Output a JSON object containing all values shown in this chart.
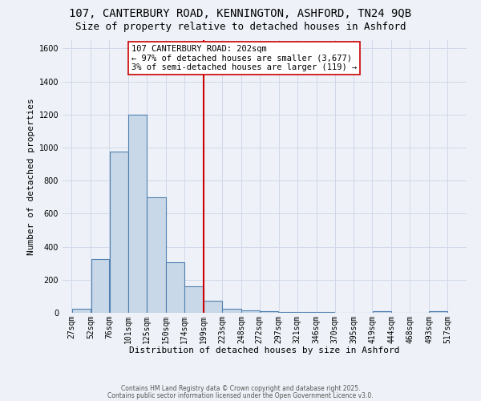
{
  "title_line1": "107, CANTERBURY ROAD, KENNINGTON, ASHFORD, TN24 9QB",
  "title_line2": "Size of property relative to detached houses in Ashford",
  "xlabel": "Distribution of detached houses by size in Ashford",
  "ylabel": "Number of detached properties",
  "bin_edges": [
    27,
    52,
    76,
    101,
    125,
    150,
    174,
    199,
    223,
    248,
    272,
    297,
    321,
    346,
    370,
    395,
    419,
    444,
    468,
    493,
    517
  ],
  "bar_heights": [
    25,
    325,
    975,
    1200,
    700,
    305,
    160,
    75,
    25,
    15,
    10,
    5,
    5,
    5,
    0,
    0,
    10,
    0,
    0,
    10
  ],
  "bar_color": "#c8d8e8",
  "bar_edgecolor": "#5080b0",
  "vline_x": 199,
  "vline_color": "#cc0000",
  "annotation_text": "107 CANTERBURY ROAD: 202sqm\n← 97% of detached houses are smaller (3,677)\n3% of semi-detached houses are larger (119) →",
  "annotation_box_edgecolor": "#cc0000",
  "annotation_box_facecolor": "#ffffff",
  "ylim": [
    0,
    1650
  ],
  "yticks": [
    0,
    200,
    400,
    600,
    800,
    1000,
    1200,
    1400,
    1600
  ],
  "grid_color": "#d0d8e8",
  "background_color": "#eef2f8",
  "footer_line1": "Contains HM Land Registry data © Crown copyright and database right 2025.",
  "footer_line2": "Contains public sector information licensed under the Open Government Licence v3.0.",
  "title_fontsize": 10,
  "subtitle_fontsize": 9,
  "axis_label_fontsize": 8,
  "tick_fontsize": 7,
  "annotation_fontsize": 7.5,
  "footer_fontsize": 5.5
}
